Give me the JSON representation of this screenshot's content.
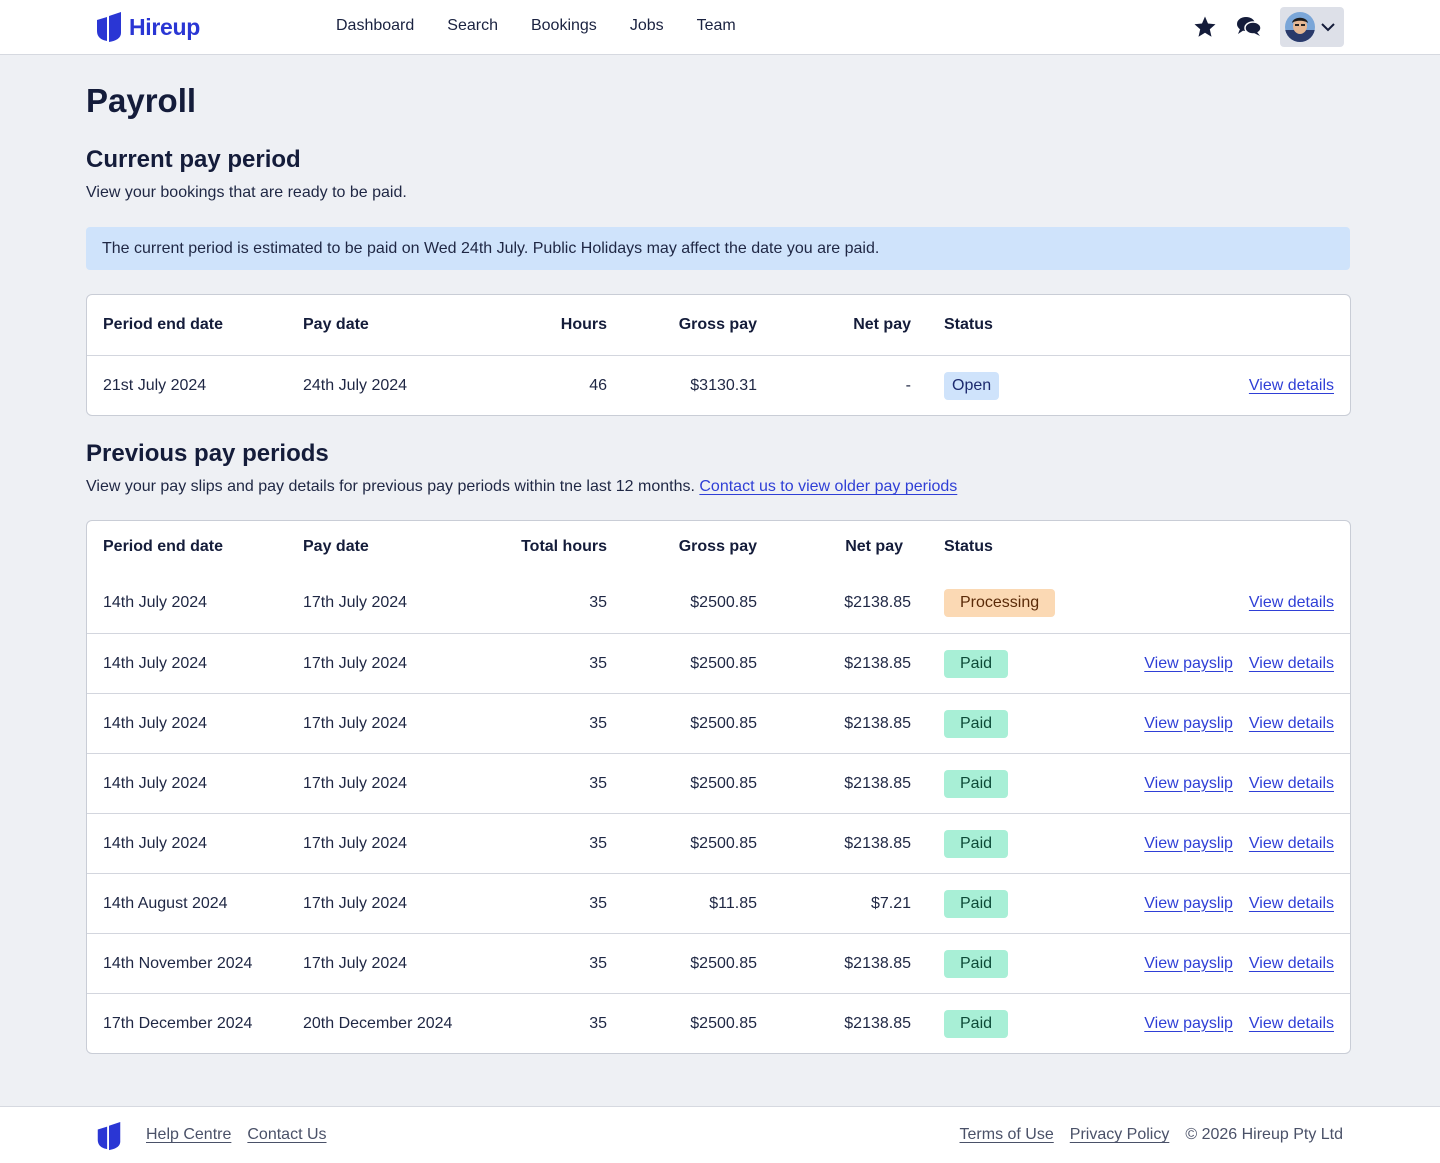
{
  "brand": {
    "name": "Hireup",
    "color": "#2a36d4"
  },
  "nav": [
    {
      "label": "Dashboard"
    },
    {
      "label": "Search"
    },
    {
      "label": "Bookings"
    },
    {
      "label": "Jobs"
    },
    {
      "label": "Team"
    }
  ],
  "header_icons": {
    "favourites": "star-icon",
    "messages": "chat-icon",
    "profile_menu": "chevron-down-icon"
  },
  "page": {
    "title": "Payroll"
  },
  "current": {
    "heading": "Current pay period",
    "description": "View your bookings that are ready to be paid.",
    "banner": "The current period is estimated to be paid on Wed 24th July. Public Holidays may affect the date you are paid.",
    "columns": {
      "end": "Period end date",
      "pay": "Pay date",
      "hours": "Hours",
      "gross": "Gross pay",
      "net": "Net pay",
      "status": "Status"
    },
    "row": {
      "end": "21st July 2024",
      "pay": "24th July 2024",
      "hours": "46",
      "gross": "$3130.31",
      "net": "-",
      "status": "Open",
      "details": "View details"
    }
  },
  "previous": {
    "heading": "Previous pay periods",
    "description": "View your pay slips and pay details for previous pay periods within tne last 12 months.",
    "contact_link": "Contact us to view older pay periods",
    "columns": {
      "end": "Period end date",
      "pay": "Pay date",
      "hours": "Total hours",
      "gross": "Gross pay",
      "net": "Net pay",
      "status": "Status"
    },
    "rows": [
      {
        "end": "14th July 2024",
        "pay": "17th July 2024",
        "hours": "35",
        "gross": "$2500.85",
        "net": "$2138.85",
        "status": "Processing",
        "payslip": "",
        "details": "View details"
      },
      {
        "end": "14th July 2024",
        "pay": "17th July 2024",
        "hours": "35",
        "gross": "$2500.85",
        "net": "$2138.85",
        "status": "Paid",
        "payslip": "View payslip",
        "details": "View details"
      },
      {
        "end": "14th July 2024",
        "pay": "17th July 2024",
        "hours": "35",
        "gross": "$2500.85",
        "net": "$2138.85",
        "status": "Paid",
        "payslip": "View payslip",
        "details": "View details"
      },
      {
        "end": "14th July 2024",
        "pay": "17th July 2024",
        "hours": "35",
        "gross": "$2500.85",
        "net": "$2138.85",
        "status": "Paid",
        "payslip": "View payslip",
        "details": "View details"
      },
      {
        "end": "14th July 2024",
        "pay": "17th July 2024",
        "hours": "35",
        "gross": "$2500.85",
        "net": "$2138.85",
        "status": "Paid",
        "payslip": "View payslip",
        "details": "View details"
      },
      {
        "end": "14th August 2024",
        "pay": "17th July 2024",
        "hours": "35",
        "gross": "$11.85",
        "net": "$7.21",
        "status": "Paid",
        "payslip": "View payslip",
        "details": "View details"
      },
      {
        "end": "14th November 2024",
        "pay": "17th July 2024",
        "hours": "35",
        "gross": "$2500.85",
        "net": "$2138.85",
        "status": "Paid",
        "payslip": "View payslip",
        "details": "View details"
      },
      {
        "end": "17th December 2024",
        "pay": "20th December 2024",
        "hours": "35",
        "gross": "$2500.85",
        "net": "$2138.85",
        "status": "Paid",
        "payslip": "View payslip",
        "details": "View details"
      }
    ]
  },
  "footer": {
    "left_links": [
      "Help Centre",
      "Contact Us"
    ],
    "right_links": [
      "Terms of Use",
      "Privacy Policy"
    ],
    "copyright": "© 2026 Hireup Pty Ltd"
  }
}
